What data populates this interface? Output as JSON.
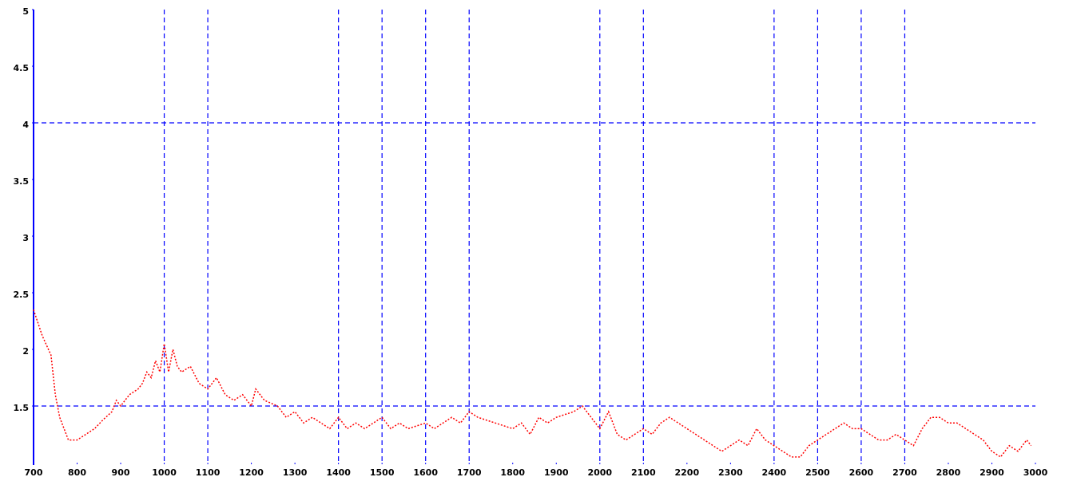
{
  "chart_data": {
    "type": "line",
    "x": [
      700,
      720,
      740,
      750,
      760,
      780,
      800,
      820,
      840,
      860,
      880,
      890,
      900,
      920,
      940,
      950,
      960,
      970,
      980,
      990,
      1000,
      1010,
      1020,
      1030,
      1040,
      1060,
      1080,
      1100,
      1120,
      1140,
      1160,
      1180,
      1200,
      1210,
      1230,
      1260,
      1280,
      1300,
      1320,
      1340,
      1360,
      1380,
      1400,
      1420,
      1440,
      1460,
      1480,
      1500,
      1520,
      1540,
      1560,
      1600,
      1620,
      1640,
      1660,
      1680,
      1700,
      1720,
      1760,
      1800,
      1820,
      1840,
      1860,
      1880,
      1900,
      1940,
      1960,
      1980,
      2000,
      2020,
      2040,
      2060,
      2100,
      2120,
      2140,
      2160,
      2180,
      2200,
      2240,
      2260,
      2280,
      2300,
      2320,
      2340,
      2360,
      2380,
      2400,
      2420,
      2440,
      2460,
      2480,
      2500,
      2520,
      2540,
      2560,
      2580,
      2600,
      2620,
      2640,
      2660,
      2680,
      2700,
      2720,
      2740,
      2760,
      2780,
      2800,
      2820,
      2840,
      2860,
      2880,
      2900,
      2920,
      2940,
      2960,
      2980,
      2990
    ],
    "series": [
      {
        "color": "#ff0000",
        "values": [
          2.35,
          2.12,
          1.95,
          1.6,
          1.4,
          1.2,
          1.2,
          1.25,
          1.3,
          1.38,
          1.45,
          1.55,
          1.5,
          1.6,
          1.65,
          1.7,
          1.8,
          1.75,
          1.9,
          1.8,
          2.05,
          1.8,
          2.0,
          1.85,
          1.8,
          1.85,
          1.7,
          1.65,
          1.75,
          1.6,
          1.55,
          1.6,
          1.5,
          1.65,
          1.55,
          1.5,
          1.4,
          1.45,
          1.35,
          1.4,
          1.35,
          1.3,
          1.4,
          1.3,
          1.35,
          1.3,
          1.35,
          1.4,
          1.3,
          1.35,
          1.3,
          1.35,
          1.3,
          1.35,
          1.4,
          1.35,
          1.45,
          1.4,
          1.35,
          1.3,
          1.35,
          1.25,
          1.4,
          1.35,
          1.4,
          1.45,
          1.5,
          1.4,
          1.3,
          1.45,
          1.25,
          1.2,
          1.3,
          1.25,
          1.35,
          1.4,
          1.35,
          1.3,
          1.2,
          1.15,
          1.1,
          1.15,
          1.2,
          1.15,
          1.3,
          1.2,
          1.15,
          1.1,
          1.05,
          1.05,
          1.15,
          1.2,
          1.25,
          1.3,
          1.35,
          1.3,
          1.3,
          1.25,
          1.2,
          1.2,
          1.25,
          1.2,
          1.15,
          1.3,
          1.4,
          1.4,
          1.35,
          1.35,
          1.3,
          1.25,
          1.2,
          1.1,
          1.05,
          1.15,
          1.1,
          1.2,
          1.15
        ]
      }
    ],
    "xlim": [
      700,
      3000
    ],
    "xticks": [
      700,
      800,
      900,
      1000,
      1100,
      1200,
      1300,
      1400,
      1500,
      1600,
      1700,
      1800,
      1900,
      2000,
      2100,
      2200,
      2300,
      2400,
      2500,
      2600,
      2700,
      2800,
      2900,
      3000
    ],
    "ylim": [
      1,
      5
    ],
    "yticks": [
      1.5,
      2,
      2.5,
      3,
      3.5,
      4,
      4.5,
      5
    ],
    "xgrid": [
      1000,
      1100,
      1400,
      1500,
      1600,
      1700,
      2000,
      2100,
      2400,
      2500,
      2600,
      2700
    ],
    "ygrid": [
      4,
      1.5
    ],
    "grid_color": "#0000ff"
  }
}
